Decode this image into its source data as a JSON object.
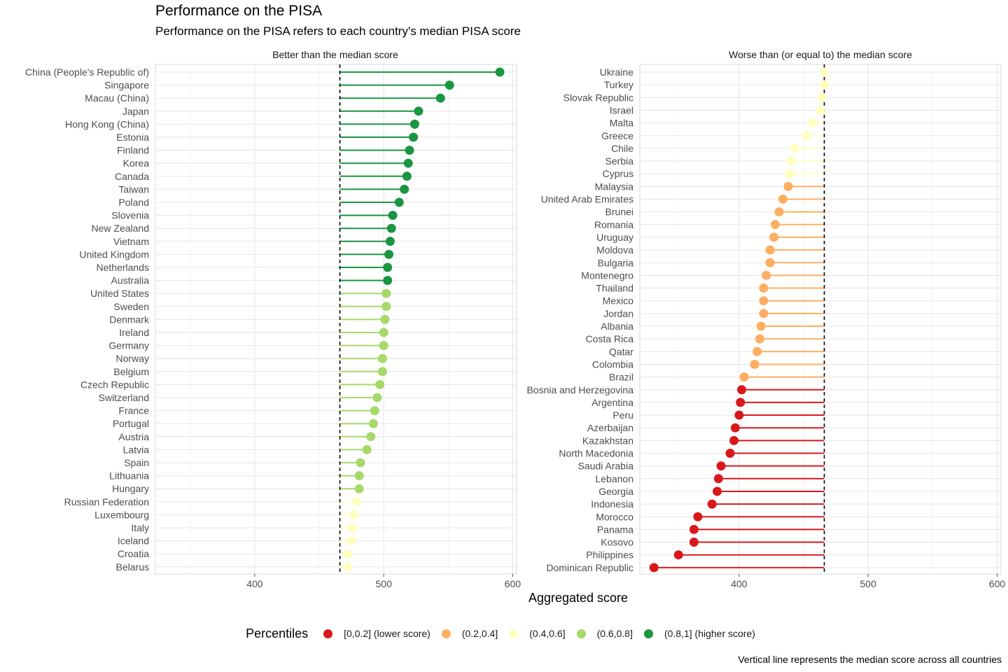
{
  "title": "Performance on the PISA",
  "subtitle": "Performance on the PISA refers to each country's median PISA score",
  "caption": "Vertical line represents the median score across all countries",
  "colors": {
    "c1": "#d7191c",
    "c2": "#fdae61",
    "c3": "#ffffbf",
    "c4": "#a6d96a",
    "c5": "#1a9641",
    "grid": "#e5e5e5",
    "panel_border": "#d9d9d9",
    "text": "#4d4d4d"
  },
  "legend": {
    "title": "Percentiles",
    "items": [
      {
        "label": "[0,0.2] (lower score)",
        "color": "#d7191c"
      },
      {
        "label": "(0.2,0.4]",
        "color": "#fdae61"
      },
      {
        "label": "(0.4,0.6]",
        "color": "#ffffbf"
      },
      {
        "label": "(0.6,0.8]",
        "color": "#a6d96a"
      },
      {
        "label": "(0.8,1] (higher score)",
        "color": "#1a9641"
      }
    ]
  },
  "chart_data": [
    {
      "type": "lollipop",
      "facet_label": "Better than the median score",
      "xlabel": "Aggregated score",
      "xlim": [
        323,
        603
      ],
      "xticks": [
        400,
        500,
        600
      ],
      "median": 466,
      "grid": true,
      "categories": [
        "China (People's Republic of)",
        "Singapore",
        "Macau (China)",
        "Japan",
        "Hong Kong (China)",
        "Estonia",
        "Finland",
        "Korea",
        "Canada",
        "Taiwan",
        "Poland",
        "Slovenia",
        "New Zealand",
        "Vietnam",
        "United Kingdom",
        "Netherlands",
        "Australia",
        "United States",
        "Sweden",
        "Denmark",
        "Ireland",
        "Germany",
        "Norway",
        "Belgium",
        "Czech Republic",
        "Switzerland",
        "France",
        "Portugal",
        "Austria",
        "Latvia",
        "Spain",
        "Lithuania",
        "Hungary",
        "Russian Federation",
        "Luxembourg",
        "Italy",
        "Iceland",
        "Croatia",
        "Belarus"
      ],
      "values": [
        590,
        551,
        544,
        527,
        524,
        523,
        520,
        519,
        518,
        516,
        512,
        507,
        506,
        505,
        504,
        503,
        503,
        502,
        502,
        501,
        500,
        500,
        499,
        499,
        497,
        495,
        493,
        492,
        490,
        487,
        482,
        481,
        481,
        479,
        477,
        476,
        475,
        472,
        472
      ],
      "percentile_group": [
        5,
        5,
        5,
        5,
        5,
        5,
        5,
        5,
        5,
        5,
        5,
        5,
        5,
        5,
        5,
        5,
        5,
        4,
        4,
        4,
        4,
        4,
        4,
        4,
        4,
        4,
        4,
        4,
        4,
        4,
        4,
        4,
        4,
        3,
        3,
        3,
        3,
        3,
        3
      ]
    },
    {
      "type": "lollipop",
      "facet_label": "Worse than (or equal to) the median score",
      "xlabel": "Aggregated score",
      "xlim": [
        323,
        603
      ],
      "xticks": [
        400,
        500,
        600
      ],
      "median": 466,
      "grid": true,
      "categories": [
        "Ukraine",
        "Turkey",
        "Slovak Republic",
        "Israel",
        "Malta",
        "Greece",
        "Chile",
        "Serbia",
        "Cyprus",
        "Malaysia",
        "United Arab Emirates",
        "Brunei",
        "Romania",
        "Uruguay",
        "Moldova",
        "Bulgaria",
        "Montenegro",
        "Thailand",
        "Mexico",
        "Jordan",
        "Albania",
        "Costa Rica",
        "Qatar",
        "Colombia",
        "Brazil",
        "Bosnia and Herzegovina",
        "Argentina",
        "Peru",
        "Azerbaijan",
        "Kazakhstan",
        "North Macedonia",
        "Saudi Arabia",
        "Lebanon",
        "Georgia",
        "Indonesia",
        "Morocco",
        "Panama",
        "Kosovo",
        "Philippines",
        "Dominican Republic"
      ],
      "values": [
        466,
        466,
        464,
        463,
        457,
        452,
        443,
        440,
        439,
        438,
        434,
        431,
        428,
        427,
        424,
        424,
        421,
        419,
        419,
        419,
        417,
        416,
        414,
        412,
        404,
        402,
        401,
        400,
        397,
        396,
        393,
        386,
        384,
        383,
        379,
        368,
        365,
        365,
        353,
        334
      ],
      "percentile_group": [
        3,
        3,
        3,
        3,
        3,
        3,
        3,
        3,
        3,
        2,
        2,
        2,
        2,
        2,
        2,
        2,
        2,
        2,
        2,
        2,
        2,
        2,
        2,
        2,
        2,
        1,
        1,
        1,
        1,
        1,
        1,
        1,
        1,
        1,
        1,
        1,
        1,
        1,
        1,
        1
      ]
    }
  ]
}
